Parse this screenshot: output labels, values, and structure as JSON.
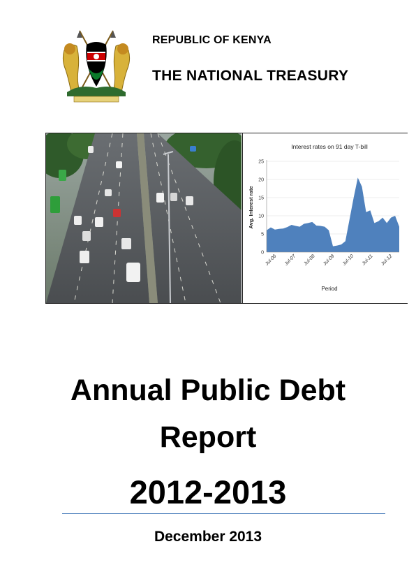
{
  "header": {
    "line1": "REPUBLIC OF KENYA",
    "line2": "THE NATIONAL TREASURY"
  },
  "cover": {
    "title_line1": "Annual Public Debt",
    "title_line2": "Report",
    "year": "2012-2013",
    "date": "December 2013"
  },
  "colors": {
    "rule": "#4f81bd",
    "area": "#4f81bd"
  },
  "chart_data": {
    "type": "area",
    "title": "Interest rates on 91 day T-bill",
    "xlabel": "Period",
    "ylabel": "Avg. Interest rate",
    "ylim": [
      0,
      25
    ],
    "yticks": [
      "0",
      "5",
      "10",
      "15",
      "20",
      "25"
    ],
    "xticks": [
      "Jul-06",
      "Jul-07",
      "Jul-08",
      "Jul-09",
      "Jul-10",
      "Jul-11",
      "Jul-12"
    ],
    "x": [
      "Jun-06",
      "Jul-06",
      "Sep-06",
      "Nov-06",
      "Jan-07",
      "Mar-07",
      "Jul-07",
      "Oct-07",
      "Jan-08",
      "Jul-08",
      "Oct-08",
      "Jan-09",
      "Jul-09",
      "Oct-09",
      "Jan-10",
      "Jul-10",
      "Aug-10",
      "Nov-10",
      "Mar-11",
      "May-11",
      "Jul-11",
      "Sep-11",
      "Nov-11",
      "Dec-11",
      "Feb-12",
      "Apr-12",
      "Jun-12",
      "Aug-12",
      "Oct-12",
      "Dec-12",
      "Feb-13",
      "Apr-13",
      "Jun-13"
    ],
    "values": [
      6.0,
      6.8,
      6.2,
      6.4,
      6.5,
      6.9,
      7.5,
      7.2,
      7.0,
      7.8,
      8.0,
      8.3,
      7.3,
      7.2,
      7.0,
      6.0,
      1.6,
      1.8,
      2.1,
      3.0,
      9.0,
      15.0,
      20.5,
      18.0,
      11.0,
      11.5,
      8.0,
      8.5,
      9.5,
      8.0,
      9.5,
      10.0,
      7.0
    ]
  }
}
